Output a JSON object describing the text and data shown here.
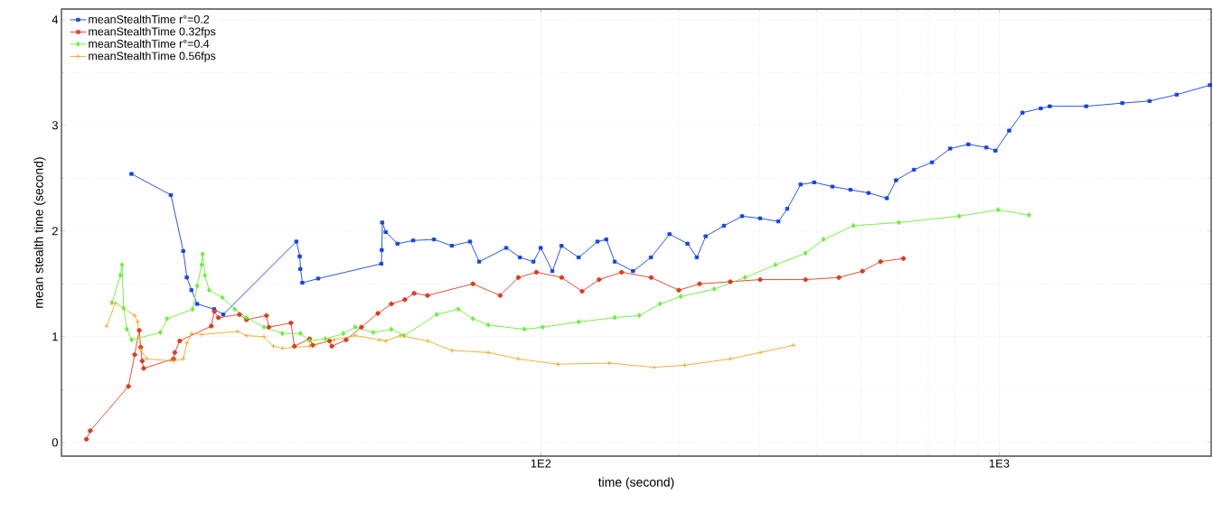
{
  "chart_data": {
    "type": "line",
    "xlabel": "time (second)",
    "ylabel": "mean stealth time (second)",
    "log": "x",
    "grid": true,
    "legend": "top left",
    "line_style": "solid",
    "xlim": [
      9,
      2900
    ],
    "ylim": [
      -0.13,
      4.1
    ],
    "xticks": [
      {
        "value": 100,
        "label": "1E2"
      },
      {
        "value": 1000,
        "label": "1E3"
      }
    ],
    "yticks": [
      0,
      1,
      2,
      3,
      4
    ],
    "series": [
      {
        "name": "meanStealthTime r°=0.2",
        "color": "#1040e8",
        "marker": "square",
        "x": [
          12.8,
          15.6,
          16.6,
          16.9,
          17.3,
          17.8,
          19.4,
          20.3,
          29.3,
          29.8,
          29.9,
          30.2,
          32.7,
          44.9,
          45.0,
          45.1,
          45.9,
          48.7,
          52.7,
          58.5,
          64.0,
          70.1,
          73.4,
          84.1,
          90.1,
          96.4,
          100,
          106,
          111,
          121,
          133,
          139,
          145,
          159,
          174,
          191,
          209,
          219,
          229,
          251,
          275,
          301,
          330,
          345,
          369,
          395,
          433,
          474,
          519,
          569,
          596,
          652,
          714,
          782,
          857,
          938,
          982,
          1052,
          1125,
          1233,
          1290,
          1549,
          1857,
          2129,
          2440,
          2884
        ],
        "values": [
          2.54,
          2.34,
          1.81,
          1.56,
          1.44,
          1.31,
          1.26,
          1.21,
          1.9,
          1.76,
          1.64,
          1.51,
          1.55,
          1.69,
          1.82,
          2.08,
          1.99,
          1.88,
          1.91,
          1.92,
          1.86,
          1.9,
          1.71,
          1.84,
          1.75,
          1.71,
          1.84,
          1.62,
          1.86,
          1.75,
          1.9,
          1.92,
          1.71,
          1.62,
          1.75,
          1.97,
          1.88,
          1.75,
          1.95,
          2.05,
          2.14,
          2.12,
          2.09,
          2.21,
          2.44,
          2.46,
          2.42,
          2.39,
          2.36,
          2.31,
          2.48,
          2.58,
          2.65,
          2.78,
          2.82,
          2.79,
          2.76,
          2.95,
          3.12,
          3.16,
          3.18,
          3.18,
          3.21,
          3.23,
          3.29,
          3.38
        ]
      },
      {
        "name": "meanStealthTime 0.32fps",
        "color": "#e03a1e",
        "marker": "circle",
        "x": [
          10.2,
          10.4,
          12.6,
          13.0,
          13.3,
          13.4,
          13.5,
          13.6,
          15.8,
          15.9,
          16.3,
          19.1,
          19.4,
          19.8,
          22.0,
          22.8,
          25.2,
          25.5,
          28.5,
          29.0,
          31.3,
          31.8,
          34.6,
          35.0,
          37.6,
          40.6,
          44.1,
          47.2,
          50.5,
          52.9,
          56.6,
          71.1,
          81.5,
          89.3,
          97.8,
          111,
          123,
          134,
          150,
          174,
          200,
          222,
          259,
          301,
          378,
          447,
          503,
          551,
          618
        ],
        "values": [
          0.03,
          0.11,
          0.53,
          0.83,
          1.06,
          0.9,
          0.77,
          0.7,
          0.79,
          0.85,
          0.96,
          1.1,
          1.24,
          1.18,
          1.21,
          1.16,
          1.2,
          1.09,
          1.13,
          0.91,
          0.98,
          0.92,
          0.96,
          0.91,
          0.97,
          1.09,
          1.22,
          1.31,
          1.35,
          1.41,
          1.39,
          1.5,
          1.39,
          1.56,
          1.61,
          1.56,
          1.43,
          1.54,
          1.61,
          1.56,
          1.44,
          1.5,
          1.52,
          1.54,
          1.54,
          1.56,
          1.62,
          1.71,
          1.74
        ]
      },
      {
        "name": "meanStealthTime r°=0.4",
        "color": "#66ee33",
        "marker": "diamond",
        "x": [
          11.6,
          12.1,
          12.2,
          12.3,
          12.5,
          12.8,
          14.8,
          15.3,
          17.4,
          17.8,
          18.2,
          18.3,
          18.5,
          18.9,
          20.2,
          21.5,
          22.8,
          24.9,
          27.3,
          29.9,
          31.3,
          33.9,
          37.1,
          39.4,
          43.1,
          47.2,
          50.3,
          59.3,
          66.1,
          71.1,
          76.8,
          92.1,
          101,
          121,
          145,
          164,
          182,
          202,
          239,
          279,
          325,
          378,
          414,
          481,
          604,
          818,
          995,
          1162
        ],
        "values": [
          1.32,
          1.58,
          1.68,
          1.27,
          1.07,
          0.97,
          1.04,
          1.17,
          1.26,
          1.48,
          1.68,
          1.78,
          1.58,
          1.44,
          1.37,
          1.26,
          1.18,
          1.09,
          1.03,
          1.03,
          0.96,
          0.98,
          1.03,
          1.09,
          1.04,
          1.07,
          1.01,
          1.21,
          1.26,
          1.17,
          1.11,
          1.07,
          1.09,
          1.14,
          1.18,
          1.2,
          1.31,
          1.38,
          1.45,
          1.56,
          1.68,
          1.79,
          1.92,
          2.05,
          2.08,
          2.14,
          2.2,
          2.15
        ]
      },
      {
        "name": "meanStealthTime 0.56fps",
        "color": "#f5a623",
        "marker": "cross",
        "x": [
          11.3,
          11.8,
          13.0,
          13.2,
          13.4,
          13.8,
          15.8,
          16.6,
          16.9,
          17.3,
          18.2,
          21.8,
          22.8,
          24.9,
          26.1,
          27.3,
          31.3,
          35.4,
          39.4,
          44.5,
          45.9,
          49.4,
          56.6,
          64.0,
          76.8,
          89.3,
          109,
          141,
          177,
          206,
          259,
          301,
          356
        ],
        "values": [
          1.1,
          1.32,
          1.2,
          1.14,
          0.88,
          0.79,
          0.77,
          0.79,
          0.94,
          1.03,
          1.02,
          1.05,
          1.01,
          1.0,
          0.91,
          0.89,
          0.91,
          0.97,
          1.01,
          0.97,
          0.96,
          1.01,
          0.96,
          0.87,
          0.85,
          0.79,
          0.74,
          0.75,
          0.71,
          0.73,
          0.79,
          0.85,
          0.92
        ]
      }
    ]
  }
}
